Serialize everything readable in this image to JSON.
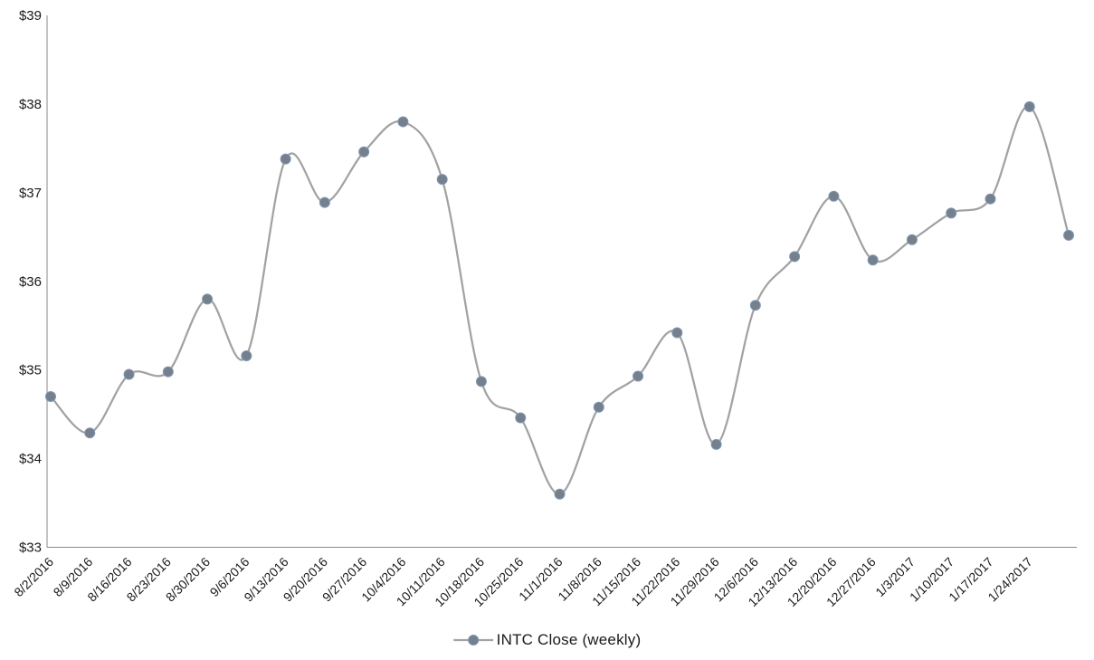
{
  "chart_data": {
    "type": "line",
    "title": "",
    "xlabel": "",
    "ylabel": "",
    "ylim": [
      33,
      39
    ],
    "ytick_step": 1,
    "ytick_prefix": "$",
    "grid": false,
    "smooth": true,
    "legend_position": "bottom-center",
    "categories": [
      "8/2/2016",
      "8/9/2016",
      "8/16/2016",
      "8/23/2016",
      "8/30/2016",
      "9/6/2016",
      "9/13/2016",
      "9/20/2016",
      "9/27/2016",
      "10/4/2016",
      "10/11/2016",
      "10/18/2016",
      "10/25/2016",
      "11/1/2016",
      "11/8/2016",
      "11/15/2016",
      "11/22/2016",
      "11/29/2016",
      "12/6/2016",
      "12/13/2016",
      "12/20/2016",
      "12/27/2016",
      "1/3/2017",
      "1/10/2017",
      "1/17/2017",
      "1/24/2017",
      ""
    ],
    "series": [
      {
        "name": "INTC Close (weekly)",
        "values": [
          34.7,
          34.29,
          34.95,
          34.98,
          35.8,
          35.16,
          37.38,
          36.89,
          37.46,
          37.8,
          37.15,
          34.87,
          34.46,
          33.6,
          34.58,
          34.93,
          35.42,
          34.16,
          35.73,
          36.28,
          36.96,
          36.24,
          36.47,
          36.77,
          36.93,
          37.97,
          36.52
        ]
      }
    ]
  },
  "colors": {
    "line": "#A2A2A2",
    "marker_fill": "#75808C",
    "marker_stroke": "#7E97B5",
    "axis": "#898989",
    "text": "#1a1a1a",
    "background": "#FFFFFF"
  }
}
